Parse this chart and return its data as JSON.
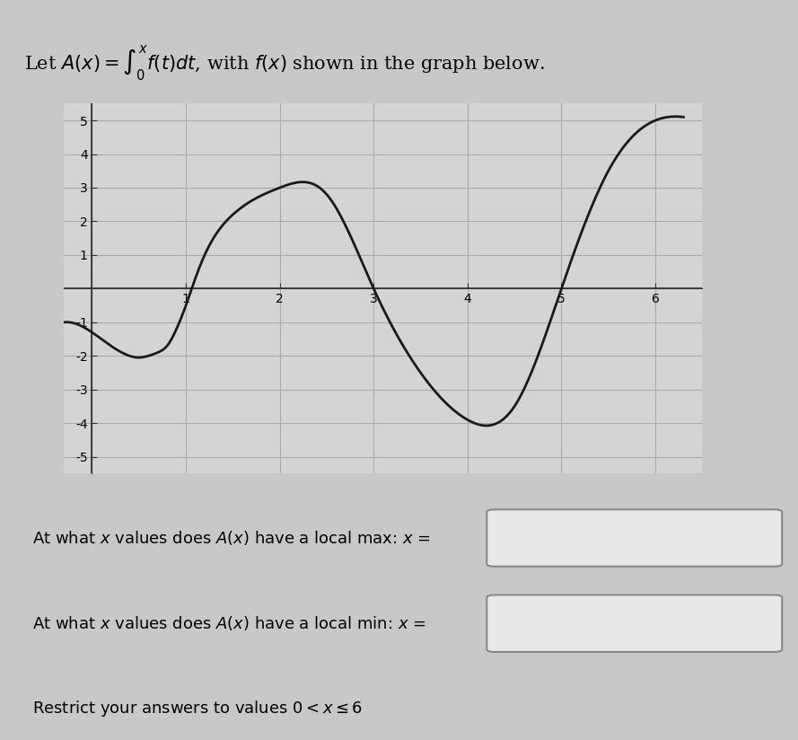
{
  "title_text": "Let $A(x) = \\int_0^x f(t)dt$, with $f(x)$ shown in the graph below.",
  "background_color": "#c8c8c8",
  "graph_background_color": "#d4d4d4",
  "xlim": [
    -0.3,
    6.5
  ],
  "ylim": [
    -5.5,
    5.5
  ],
  "xticks": [
    1,
    2,
    3,
    4,
    5,
    6
  ],
  "yticks": [
    -5,
    -4,
    -3,
    -2,
    -1,
    1,
    2,
    3,
    4,
    5
  ],
  "curve_color": "#1a1a1a",
  "grid_color": "#aaaaaa",
  "question1": "At what $x$ values does $A(x)$ have a local max: $x$ =",
  "question2": "At what $x$ values does $A(x)$ have a local min: $x$ =",
  "restrict": "Restrict your answers to values $0 < x \\leq 6$",
  "curve_x": [
    -0.3,
    0.0,
    0.2,
    0.4,
    0.5,
    0.6,
    0.7,
    0.8,
    0.9,
    1.0,
    1.1,
    1.2,
    1.5,
    2.0,
    2.5,
    3.0,
    3.5,
    4.0,
    4.5,
    5.0,
    5.5,
    6.0,
    6.3
  ],
  "curve_y": [
    -1.0,
    -1.3,
    -1.7,
    -2.0,
    -2.05,
    -2.0,
    -1.9,
    -1.7,
    -1.2,
    -0.5,
    0.3,
    1.0,
    2.2,
    3.0,
    2.8,
    0.0,
    -2.5,
    -3.9,
    -3.5,
    0.0,
    3.5,
    5.0,
    5.1
  ]
}
